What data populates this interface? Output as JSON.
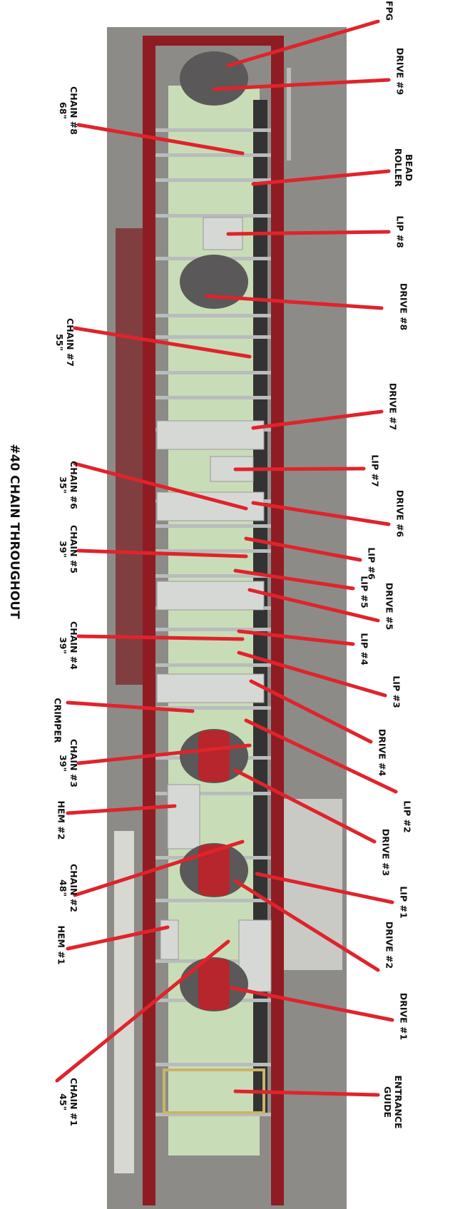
{
  "title": "#40 CHAIN THROUGHOUT",
  "labels": [
    [
      "FPG"
    ],
    [
      "DRIVE #9"
    ],
    [
      "BEAD",
      "ROLLER"
    ],
    [
      "LIP #8"
    ],
    [
      "DRIVE #8"
    ],
    [
      "DRIVE #7"
    ],
    [
      "LIP #7"
    ],
    [
      "DRIVE #6"
    ],
    [
      "LIP #6"
    ],
    [
      "LIP #5"
    ],
    [
      "DRIVE #5"
    ],
    [
      "LIP #4"
    ],
    [
      "LIP #3"
    ],
    [
      "DRIVE #4"
    ],
    [
      "LIP #2"
    ],
    [
      "DRIVE #3"
    ],
    [
      "LIP #1"
    ],
    [
      "DRIVE #2"
    ],
    [
      "DRIVE #1"
    ],
    [
      "ENTRANCE",
      "GUIDE"
    ],
    [
      "CHAIN #8",
      "68\""
    ],
    [
      "CHAIN #7",
      "55\""
    ],
    [
      "CHAIN #6",
      "35\""
    ],
    [
      "CHAIN #5",
      "39\""
    ],
    [
      "CHAIN #4",
      "39\""
    ],
    [
      "CRIMPER"
    ],
    [
      "CHAIN #3",
      "39\""
    ],
    [
      "HEM #2"
    ],
    [
      "CHAIN #2",
      "48\""
    ],
    [
      "HEM #1"
    ],
    [
      "CHAIN #1",
      "45\""
    ]
  ]
}
